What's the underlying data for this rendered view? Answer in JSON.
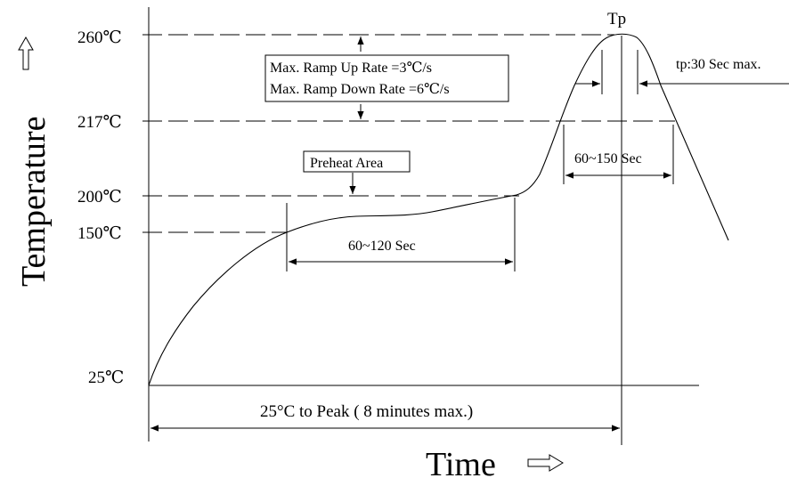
{
  "diagram": {
    "y_axis_title": "Temperature",
    "x_axis_title": "Time",
    "peak_label": "Tp",
    "temperature_labels": {
      "t260": "260℃",
      "t217": "217℃",
      "t200": "200℃",
      "t150": "150℃",
      "t25": "25℃"
    },
    "ramp_up": "Max. Ramp Up Rate =3℃/s",
    "ramp_down": "Max. Ramp Down Rate =6℃/s",
    "preheat_area": "Preheat Area",
    "preheat_duration": "60~120 Sec",
    "liquidus_duration": "60~150 Sec",
    "peak_duration": "tp:30 Sec max.",
    "total_duration": "25°C to Peak ( 8 minutes max.)",
    "arrow_glyph": "outline-arrow-icon"
  }
}
